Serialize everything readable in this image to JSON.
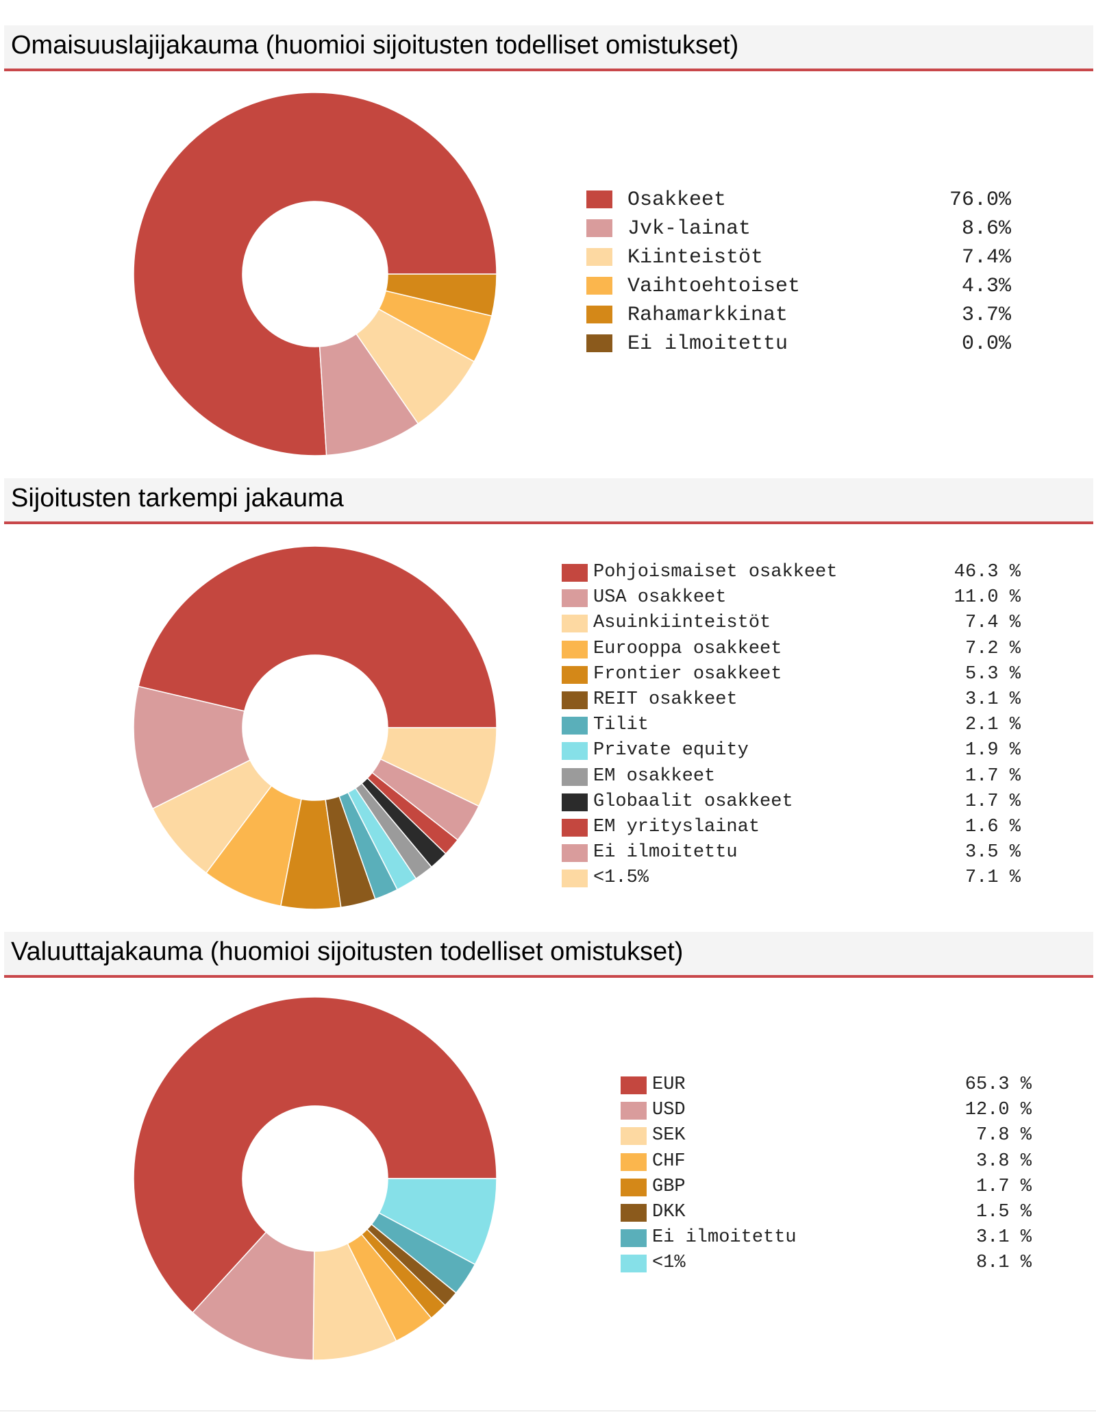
{
  "colors": {
    "accent_rule": "#c8474a",
    "palette": [
      "#c4473f",
      "#d99c9c",
      "#fdd9a2",
      "#fbb64d",
      "#d48818",
      "#8b5a1c",
      "#5aafba",
      "#86e0e8",
      "#9b9b9b",
      "#2b2b2b"
    ]
  },
  "sections": [
    {
      "title": "Omaisuuslajijakauma (huomioi sijoitusten todelliset omistukset)",
      "chart_data": {
        "type": "pie",
        "style": "donut",
        "categories": [
          "Osakkeet",
          "Jvk-lainat",
          "Kiinteistöt",
          "Vaihtoehtoiset",
          "Rahamarkkinat",
          "Ei ilmoitettu"
        ],
        "values": [
          76.0,
          8.6,
          7.4,
          4.3,
          3.7,
          0.0
        ],
        "value_labels": [
          "76.0%",
          "8.6%",
          "7.4%",
          "4.3%",
          "3.7%",
          "0.0%"
        ],
        "colors": [
          "#c4473f",
          "#d99c9c",
          "#fdd9a2",
          "#fbb64d",
          "#d48818",
          "#8b5a1c"
        ],
        "legend_position": "right"
      }
    },
    {
      "title": "Sijoitusten tarkempi jakauma",
      "chart_data": {
        "type": "pie",
        "style": "donut",
        "categories": [
          "Pohjoismaiset osakkeet",
          "USA osakkeet",
          "Asuinkiinteistöt",
          "Eurooppa osakkeet",
          "Frontier osakkeet",
          "REIT osakkeet",
          "Tilit",
          "Private equity",
          "EM osakkeet",
          "Globaalit osakkeet",
          "EM yrityslainat",
          "Ei ilmoitettu",
          "<1.5%"
        ],
        "values": [
          46.3,
          11.0,
          7.4,
          7.2,
          5.3,
          3.1,
          2.1,
          1.9,
          1.7,
          1.7,
          1.6,
          3.5,
          7.1
        ],
        "value_labels": [
          "46.3 %",
          "11.0 %",
          "7.4 %",
          "7.2 %",
          "5.3 %",
          "3.1 %",
          "2.1 %",
          "1.9 %",
          "1.7 %",
          "1.7 %",
          "1.6 %",
          "3.5 %",
          "7.1 %"
        ],
        "colors": [
          "#c4473f",
          "#d99c9c",
          "#fdd9a2",
          "#fbb64d",
          "#d48818",
          "#8b5a1c",
          "#5aafba",
          "#86e0e8",
          "#9b9b9b",
          "#2b2b2b",
          "#c4473f",
          "#d99c9c",
          "#fdd9a2"
        ],
        "legend_position": "right"
      }
    },
    {
      "title": "Valuuttajakauma (huomioi sijoitusten todelliset omistukset)",
      "chart_data": {
        "type": "pie",
        "style": "donut",
        "categories": [
          "EUR",
          "USD",
          "SEK",
          "CHF",
          "GBP",
          "DKK",
          "Ei ilmoitettu",
          "<1%"
        ],
        "values": [
          65.3,
          12.0,
          7.8,
          3.8,
          1.7,
          1.5,
          3.1,
          8.1
        ],
        "value_labels": [
          "65.3 %",
          "12.0 %",
          "7.8 %",
          "3.8 %",
          "1.7 %",
          "1.5 %",
          "3.1 %",
          "8.1 %"
        ],
        "colors": [
          "#c4473f",
          "#d99c9c",
          "#fdd9a2",
          "#fbb64d",
          "#d48818",
          "#8b5a1c",
          "#5aafba",
          "#86e0e8"
        ],
        "legend_position": "right"
      }
    }
  ]
}
